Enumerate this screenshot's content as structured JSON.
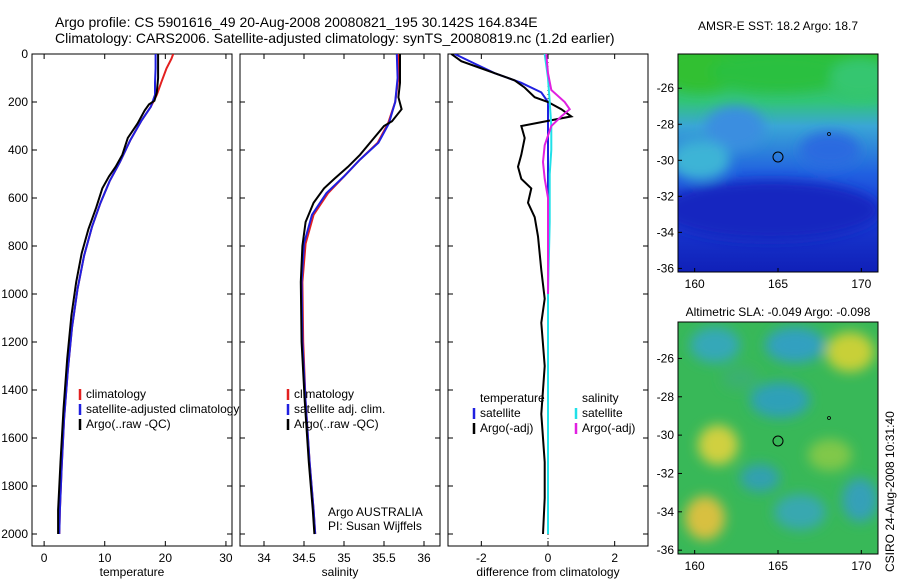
{
  "figure": {
    "title_line1": "Argo profile: CS 5901616_49 20-Aug-2008 20080821_195 30.142S 164.834E",
    "title_line2": "Climatology: CARS2006. Satellite-adjusted climatology: synTS_20080819.nc (1.2d earlier)",
    "credit_vertical": "CSIRO 24-Aug-2008 10:31:40"
  },
  "colors": {
    "climatology": "#e32020",
    "satellite": "#2020e0",
    "argo": "#000000",
    "sat_salinity": "#20e0e8",
    "argo_salinity_diff": "#e020e0"
  },
  "chart_data": [
    {
      "type": "line",
      "id": "temperature",
      "xlabel": "temperature",
      "ylabel": "",
      "xlim": [
        -2,
        31
      ],
      "ylim": [
        2050,
        0
      ],
      "y_reversed": true,
      "xticks": [
        0,
        10,
        20,
        30
      ],
      "yticks": [
        0,
        200,
        400,
        600,
        800,
        1000,
        1200,
        1400,
        1600,
        1800,
        2000
      ],
      "legend": {
        "placement": "bottom-center",
        "entries": [
          "climatology",
          "satellite-adjusted climatology",
          "Argo(..raw -QC)"
        ]
      },
      "series": [
        {
          "name": "climatology",
          "color_key": "climatology",
          "points": [
            [
              21.3,
              0
            ],
            [
              21.0,
              20
            ],
            [
              20.2,
              60
            ],
            [
              19.3,
              120
            ],
            [
              18.6,
              170
            ],
            [
              17.6,
              220
            ],
            [
              16.0,
              280
            ],
            [
              14.2,
              360
            ],
            [
              12.5,
              450
            ],
            [
              10.8,
              530
            ],
            [
              9.3,
              620
            ],
            [
              7.9,
              720
            ],
            [
              6.6,
              840
            ],
            [
              5.5,
              980
            ],
            [
              4.6,
              1140
            ],
            [
              3.9,
              1320
            ],
            [
              3.3,
              1520
            ],
            [
              2.9,
              1720
            ],
            [
              2.6,
              1900
            ],
            [
              2.5,
              2000
            ]
          ]
        },
        {
          "name": "satellite-adjusted climatology",
          "color_key": "satellite",
          "points": [
            [
              18.4,
              0
            ],
            [
              18.4,
              60
            ],
            [
              18.3,
              120
            ],
            [
              18.3,
              170
            ],
            [
              17.6,
              220
            ],
            [
              16.0,
              280
            ],
            [
              14.2,
              360
            ],
            [
              12.5,
              450
            ],
            [
              10.8,
              530
            ],
            [
              9.3,
              620
            ],
            [
              7.9,
              720
            ],
            [
              6.6,
              840
            ],
            [
              5.5,
              980
            ],
            [
              4.6,
              1140
            ],
            [
              3.9,
              1320
            ],
            [
              3.3,
              1520
            ],
            [
              2.9,
              1720
            ],
            [
              2.6,
              1900
            ],
            [
              2.5,
              2000
            ]
          ]
        },
        {
          "name": "Argo(..raw -QC)",
          "color_key": "argo",
          "points": [
            [
              18.8,
              0
            ],
            [
              18.8,
              100
            ],
            [
              18.6,
              160
            ],
            [
              18.2,
              195
            ],
            [
              17.3,
              210
            ],
            [
              16.6,
              235
            ],
            [
              15.4,
              290
            ],
            [
              13.8,
              350
            ],
            [
              12.9,
              420
            ],
            [
              11.8,
              470
            ],
            [
              10.7,
              510
            ],
            [
              9.6,
              560
            ],
            [
              8.6,
              640
            ],
            [
              7.3,
              730
            ],
            [
              6.2,
              830
            ],
            [
              5.3,
              950
            ],
            [
              4.5,
              1090
            ],
            [
              3.8,
              1270
            ],
            [
              3.2,
              1480
            ],
            [
              2.7,
              1700
            ],
            [
              2.3,
              1900
            ],
            [
              2.3,
              2000
            ]
          ]
        }
      ]
    },
    {
      "type": "line",
      "id": "salinity",
      "xlabel": "salinity",
      "ylabel": "",
      "xlim": [
        33.7,
        36.2
      ],
      "ylim": [
        2050,
        0
      ],
      "y_reversed": true,
      "xticks": [
        34,
        34.5,
        35,
        35.5,
        36
      ],
      "legend": {
        "placement": "bottom-center",
        "entries": [
          "climatology",
          "satellite adj. clim.",
          "Argo(..raw -QC)"
        ]
      },
      "annotation": [
        "Argo AUSTRALIA",
        "PI: Susan Wijffels"
      ],
      "series": [
        {
          "name": "climatology",
          "color_key": "climatology",
          "points": [
            [
              35.68,
              0
            ],
            [
              35.68,
              100
            ],
            [
              35.64,
              200
            ],
            [
              35.55,
              290
            ],
            [
              35.42,
              370
            ],
            [
              35.2,
              440
            ],
            [
              35.0,
              510
            ],
            [
              34.8,
              580
            ],
            [
              34.62,
              670
            ],
            [
              34.52,
              790
            ],
            [
              34.48,
              950
            ],
            [
              34.49,
              1200
            ],
            [
              34.52,
              1450
            ],
            [
              34.57,
              1700
            ],
            [
              34.62,
              1900
            ],
            [
              34.64,
              2000
            ]
          ]
        },
        {
          "name": "satellite adj. clim.",
          "color_key": "satellite",
          "points": [
            [
              35.66,
              0
            ],
            [
              35.67,
              100
            ],
            [
              35.64,
              200
            ],
            [
              35.56,
              290
            ],
            [
              35.43,
              370
            ],
            [
              35.2,
              440
            ],
            [
              35.0,
              510
            ],
            [
              34.78,
              580
            ],
            [
              34.6,
              670
            ],
            [
              34.5,
              790
            ],
            [
              34.47,
              950
            ],
            [
              34.48,
              1200
            ],
            [
              34.52,
              1450
            ],
            [
              34.57,
              1700
            ],
            [
              34.62,
              1900
            ],
            [
              34.64,
              2000
            ]
          ]
        },
        {
          "name": "Argo(..raw -QC)",
          "color_key": "argo",
          "points": [
            [
              35.7,
              0
            ],
            [
              35.7,
              120
            ],
            [
              35.68,
              180
            ],
            [
              35.72,
              230
            ],
            [
              35.6,
              280
            ],
            [
              35.5,
              300
            ],
            [
              35.35,
              360
            ],
            [
              35.2,
              420
            ],
            [
              35.05,
              470
            ],
            [
              34.88,
              520
            ],
            [
              34.75,
              560
            ],
            [
              34.62,
              620
            ],
            [
              34.52,
              700
            ],
            [
              34.48,
              800
            ],
            [
              34.46,
              950
            ],
            [
              34.47,
              1200
            ],
            [
              34.51,
              1450
            ],
            [
              34.56,
              1700
            ],
            [
              34.61,
              1900
            ],
            [
              34.63,
              2000
            ]
          ]
        }
      ]
    },
    {
      "type": "line",
      "id": "difference",
      "xlabel": "difference from climatology",
      "ylabel": "",
      "xlim": [
        -3,
        3
      ],
      "ylim": [
        2050,
        0
      ],
      "y_reversed": true,
      "xticks": [
        -2,
        0,
        2
      ],
      "legend": {
        "placement": "bottom",
        "group_titles": [
          "temperature",
          "salinity"
        ],
        "entries": [
          "satellite",
          "Argo(-adj)",
          "satellite",
          "Argo(-adj)"
        ]
      },
      "series": [
        {
          "name": "temperature satellite",
          "color_key": "satellite",
          "points": [
            [
              -2.8,
              0
            ],
            [
              -2.2,
              40
            ],
            [
              -1.6,
              80
            ],
            [
              -0.8,
              120
            ],
            [
              -0.2,
              160
            ],
            [
              0.0,
              200
            ],
            [
              0.0,
              300
            ],
            [
              0.0,
              600
            ],
            [
              0.0,
              1000
            ],
            [
              0.0,
              2000
            ]
          ]
        },
        {
          "name": "temperature Argo(-adj)",
          "color_key": "argo",
          "points": [
            [
              -2.9,
              0
            ],
            [
              -2.6,
              30
            ],
            [
              -2.2,
              50
            ],
            [
              -1.6,
              80
            ],
            [
              -1.0,
              110
            ],
            [
              -0.7,
              140
            ],
            [
              -0.4,
              180
            ],
            [
              0.0,
              200
            ],
            [
              0.4,
              230
            ],
            [
              0.7,
              260
            ],
            [
              -0.8,
              300
            ],
            [
              -0.7,
              350
            ],
            [
              -0.8,
              420
            ],
            [
              -0.9,
              470
            ],
            [
              -0.8,
              520
            ],
            [
              -0.5,
              560
            ],
            [
              -0.6,
              620
            ],
            [
              -0.4,
              680
            ],
            [
              -0.3,
              760
            ],
            [
              -0.2,
              900
            ],
            [
              -0.1,
              1020
            ],
            [
              -0.2,
              1120
            ],
            [
              -0.1,
              1300
            ],
            [
              -0.2,
              1500
            ],
            [
              -0.1,
              1700
            ],
            [
              -0.1,
              1850
            ],
            [
              -0.15,
              2000
            ]
          ]
        },
        {
          "name": "salinity satellite",
          "color_key": "sat_salinity",
          "points": [
            [
              -0.1,
              0
            ],
            [
              0.0,
              100
            ],
            [
              0.05,
              200
            ],
            [
              0.1,
              300
            ],
            [
              0.1,
              400
            ],
            [
              0.05,
              500
            ],
            [
              0.05,
              700
            ],
            [
              0.0,
              1000
            ],
            [
              0.0,
              1500
            ],
            [
              0.0,
              2000
            ]
          ]
        },
        {
          "name": "salinity Argo(-adj)",
          "color_key": "argo_salinity_diff",
          "points": [
            [
              -0.05,
              0
            ],
            [
              0.0,
              80
            ],
            [
              0.1,
              150
            ],
            [
              0.5,
              200
            ],
            [
              0.65,
              230
            ],
            [
              0.4,
              260
            ],
            [
              0.1,
              300
            ],
            [
              -0.1,
              380
            ],
            [
              -0.15,
              450
            ],
            [
              -0.1,
              520
            ],
            [
              0.0,
              600
            ],
            [
              0.0,
              800
            ],
            [
              0.0,
              1000
            ]
          ]
        }
      ]
    }
  ],
  "maps": [
    {
      "id": "sst-map",
      "title": "AMSR-E SST: 18.2 Argo: 18.7",
      "lon_ticks": [
        160,
        165,
        170
      ],
      "lat_ticks": [
        -26,
        -28,
        -30,
        -32,
        -34,
        -36
      ],
      "lon_range": [
        159,
        171
      ],
      "lat_range": [
        -36.2,
        -24.1
      ],
      "float_position": [
        164.834,
        -30.142
      ]
    },
    {
      "id": "sla-map",
      "title": "Altimetric SLA: -0.049 Argo: -0.098",
      "lon_ticks": [
        160,
        165,
        170
      ],
      "lat_ticks": [
        -26,
        -28,
        -30,
        -32,
        -34,
        -36
      ],
      "lon_range": [
        159,
        171
      ],
      "lat_range": [
        -36.2,
        -24.1
      ],
      "float_position": [
        164.834,
        -30.142
      ]
    }
  ]
}
